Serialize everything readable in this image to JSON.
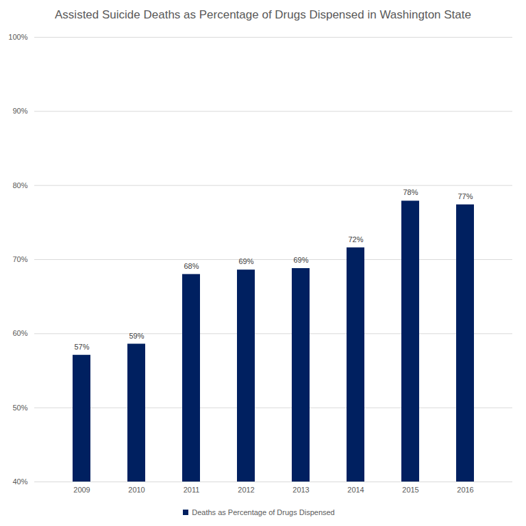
{
  "chart_data": {
    "type": "bar",
    "title": "Assisted Suicide Deaths as Percentage of Drugs Dispensed in Washington State",
    "categories": [
      "2009",
      "2010",
      "2011",
      "2012",
      "2013",
      "2014",
      "2015",
      "2016"
    ],
    "series": [
      {
        "name": "Deaths as Percentage of Drugs Dispensed",
        "color": "#002060",
        "values": [
          57.1,
          58.6,
          68.0,
          68.6,
          68.8,
          71.6,
          77.9,
          77.4
        ],
        "value_labels": [
          "57%",
          "59%",
          "68%",
          "69%",
          "69%",
          "72%",
          "78%",
          "77%"
        ]
      }
    ],
    "ylim": [
      40,
      100
    ],
    "yticks": [
      {
        "value": 40,
        "label": "40%"
      },
      {
        "value": 50,
        "label": "50%"
      },
      {
        "value": 60,
        "label": "60%"
      },
      {
        "value": 70,
        "label": "70%"
      },
      {
        "value": 80,
        "label": "80%"
      },
      {
        "value": 90,
        "label": "90%"
      },
      {
        "value": 100,
        "label": "100%"
      }
    ],
    "grid": true,
    "data_labels": true,
    "legend": "bottom"
  }
}
